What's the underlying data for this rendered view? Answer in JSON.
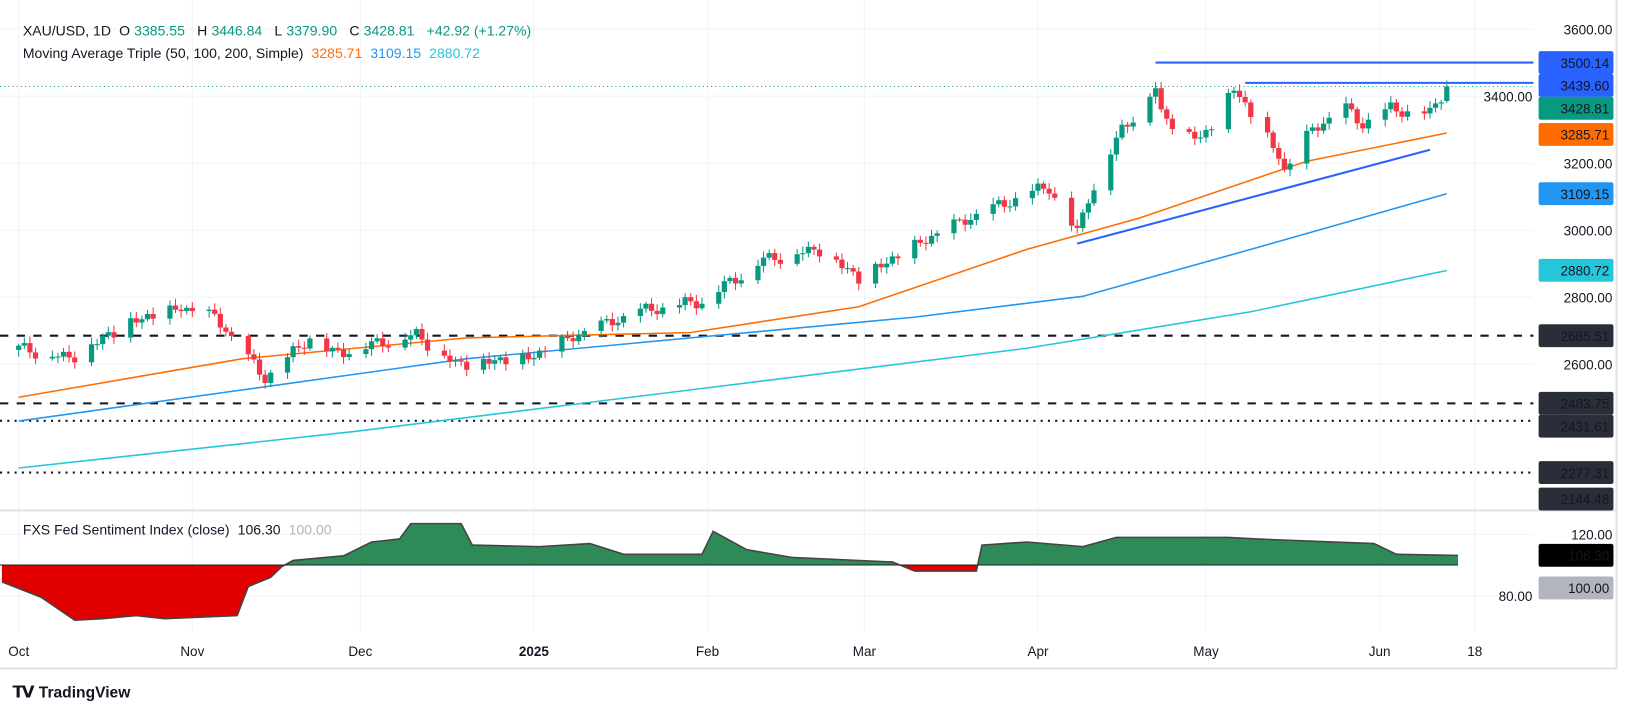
{
  "header": {
    "symbol": "XAU/USD, 1D",
    "open_label": "O",
    "open": "3385.55",
    "high_label": "H",
    "high": "3446.84",
    "low_label": "L",
    "low": "3379.90",
    "close_label": "C",
    "close": "3428.81",
    "change": "+42.92 (+1.27%)"
  },
  "ma_legend": {
    "title": "Moving Average Triple (50, 100, 200, Simple)",
    "ma50": "3285.71",
    "ma100": "3109.15",
    "ma200": "2880.72"
  },
  "sentiment_legend": {
    "title": "FXS Fed Sentiment Index (close)",
    "value": "106.30",
    "baseline": "100.00"
  },
  "branding": {
    "logo": "TradingView"
  },
  "colors": {
    "up": "#089981",
    "down": "#f23645",
    "ma50": "#ff6d00",
    "ma100": "#2196f3",
    "ma200": "#26c6da",
    "trend": "#2962ff",
    "sent_up": "#2e8b57",
    "sent_down": "#e00000"
  },
  "chart_data": {
    "type": "candlestick",
    "title": "XAU/USD, 1D",
    "x_axis_ticks": [
      "Oct",
      "Nov",
      "Dec",
      "2025",
      "Feb",
      "Mar",
      "Apr",
      "May",
      "Jun",
      "18"
    ],
    "x_axis_tick_days": [
      0,
      31,
      61,
      92,
      123,
      151,
      182,
      212,
      243,
      260
    ],
    "x_unit": "days since 2024-10-01",
    "y_ticks": [
      "3600.00",
      "3400.00",
      "3200.00",
      "3000.00",
      "2800.00",
      "2600.00"
    ],
    "y_tick_values": [
      3600,
      3400,
      3200,
      3000,
      2800,
      2600
    ],
    "ylim": [
      2144,
      3600
    ],
    "close_keypoints": [
      [
        0,
        2648
      ],
      [
        9,
        2617
      ],
      [
        20,
        2725
      ],
      [
        29,
        2766
      ],
      [
        35,
        2740
      ],
      [
        44,
        2555
      ],
      [
        52,
        2679
      ],
      [
        56,
        2630
      ],
      [
        71,
        2688
      ],
      [
        78,
        2600
      ],
      [
        91,
        2617
      ],
      [
        101,
        2695
      ],
      [
        111,
        2757
      ],
      [
        122,
        2788
      ],
      [
        133,
        2912
      ],
      [
        143,
        2943
      ],
      [
        150,
        2856
      ],
      [
        164,
        2989
      ],
      [
        170,
        3036
      ],
      [
        181,
        3113
      ],
      [
        184,
        3128
      ],
      [
        189,
        2989
      ],
      [
        191,
        3098
      ],
      [
        197,
        3300
      ],
      [
        203,
        3423
      ],
      [
        204,
        3346
      ],
      [
        211,
        3268
      ],
      [
        217,
        3423
      ],
      [
        225,
        3222
      ],
      [
        226,
        3175
      ],
      [
        231,
        3300
      ],
      [
        237,
        3361
      ],
      [
        240,
        3315
      ],
      [
        245,
        3361
      ],
      [
        252,
        3346
      ],
      [
        255,
        3428.81
      ]
    ],
    "last_candle": {
      "open": 3385.55,
      "high": 3446.84,
      "low": 3379.9,
      "close": 3428.81
    },
    "moving_averages": [
      {
        "name": "SMA 50",
        "value": "3285.71",
        "points": [
          [
            0,
            2502
          ],
          [
            40,
            2617
          ],
          [
            80,
            2679
          ],
          [
            120,
            2695
          ],
          [
            150,
            2772
          ],
          [
            180,
            2943
          ],
          [
            200,
            3036
          ],
          [
            230,
            3206
          ],
          [
            255,
            3290
          ]
        ]
      },
      {
        "name": "SMA 100",
        "value": "3109.15",
        "points": [
          [
            0,
            2431
          ],
          [
            40,
            2524
          ],
          [
            80,
            2617
          ],
          [
            120,
            2679
          ],
          [
            160,
            2741
          ],
          [
            190,
            2803
          ],
          [
            220,
            2943
          ],
          [
            255,
            3109
          ]
        ]
      },
      {
        "name": "SMA 200",
        "value": "2880.72",
        "points": [
          [
            0,
            2291
          ],
          [
            60,
            2400
          ],
          [
            120,
            2524
          ],
          [
            180,
            2648
          ],
          [
            220,
            2757
          ],
          [
            255,
            2880
          ]
        ]
      }
    ],
    "trendline": [
      [
        189,
        2960
      ],
      [
        252,
        3240
      ]
    ],
    "horizontal_levels": [
      {
        "value": 3500.14,
        "label": "3500.14",
        "style": "solid",
        "from_day": 203
      },
      {
        "value": 3439.6,
        "label": "3439.60",
        "style": "solid",
        "from_day": 219
      },
      {
        "value": 2685.51,
        "label": "2685.51",
        "style": "dashed"
      },
      {
        "value": 2483.75,
        "label": "2483.75",
        "style": "dashed"
      },
      {
        "value": 2431.61,
        "label": "2431.61",
        "style": "dotted"
      },
      {
        "value": 2277.31,
        "label": "2277.31",
        "style": "dotted"
      },
      {
        "value": 2144.48,
        "label": "2144.48",
        "style": "none"
      }
    ],
    "price_labels": [
      {
        "label": "3500.14",
        "value": 3500.14,
        "color": "#2962ff"
      },
      {
        "label": "3439.60",
        "value": 3439.6,
        "color": "#2962ff"
      },
      {
        "label": "3428.81",
        "value": 3428.81,
        "color": "#089981"
      },
      {
        "label": "3285.71",
        "value": 3285.71,
        "color": "#ff6d00"
      },
      {
        "label": "3109.15",
        "value": 3109.15,
        "color": "#2196f3"
      },
      {
        "label": "2880.72",
        "value": 2880.72,
        "color": "#26c6da"
      },
      {
        "label": "2685.51",
        "value": 2685.51,
        "color": "#2a2e39"
      },
      {
        "label": "2483.75",
        "value": 2483.75,
        "color": "#2a2e39"
      },
      {
        "label": "2431.61",
        "value": 2431.61,
        "color": "#2a2e39"
      },
      {
        "label": "2277.31",
        "value": 2277.31,
        "color": "#2a2e39"
      },
      {
        "label": "2144.48",
        "value": 2144.48,
        "color": "#2a2e39"
      }
    ],
    "sentiment": {
      "name": "FXS Fed Sentiment Index",
      "baseline": 100,
      "y_ticks": [
        "120.00",
        "80.00"
      ],
      "y_tick_values": [
        120,
        80
      ],
      "current_label": "106.30",
      "baseline_label": "100.00",
      "points": [
        [
          -3,
          89
        ],
        [
          4,
          79
        ],
        [
          10,
          64
        ],
        [
          15,
          65
        ],
        [
          21,
          67
        ],
        [
          26,
          65
        ],
        [
          39,
          67
        ],
        [
          41,
          86
        ],
        [
          45,
          92
        ],
        [
          47,
          99
        ],
        [
          49,
          103
        ],
        [
          58,
          106
        ],
        [
          63,
          115
        ],
        [
          68,
          117
        ],
        [
          70,
          127
        ],
        [
          79,
          127
        ],
        [
          81,
          113
        ],
        [
          93,
          112
        ],
        [
          102,
          114
        ],
        [
          108,
          107
        ],
        [
          122,
          107
        ],
        [
          124,
          122
        ],
        [
          130,
          110
        ],
        [
          138,
          105
        ],
        [
          156,
          102
        ],
        [
          160,
          96
        ],
        [
          171,
          96
        ],
        [
          172,
          113
        ],
        [
          180,
          115
        ],
        [
          190,
          112
        ],
        [
          196,
          118
        ],
        [
          216,
          118
        ],
        [
          221,
          117
        ],
        [
          242,
          114
        ],
        [
          246,
          107
        ],
        [
          257,
          106.3
        ]
      ]
    }
  }
}
